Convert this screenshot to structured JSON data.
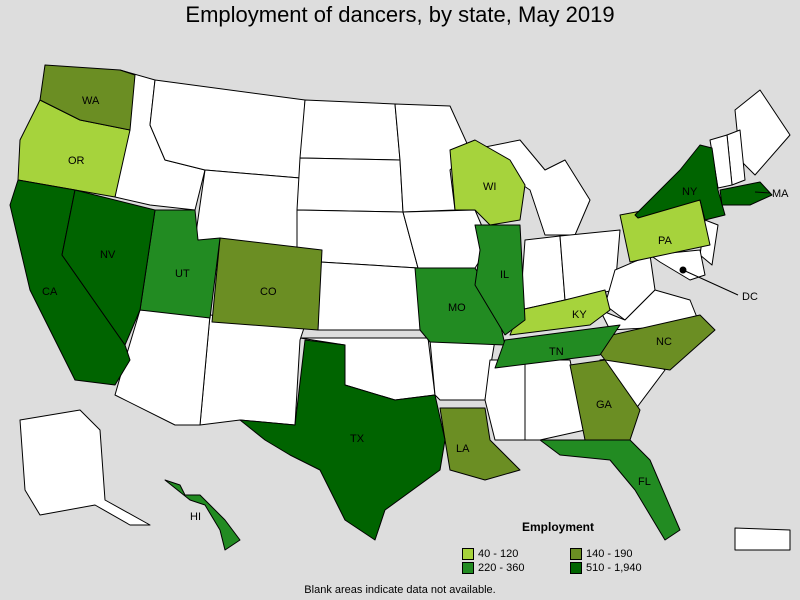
{
  "title": "Employment of dancers, by state, May 2019",
  "legend": {
    "title": "Employment",
    "items": [
      {
        "label": "40 - 120",
        "color": "#a6d33c"
      },
      {
        "label": "140 - 190",
        "color": "#6b8e23"
      },
      {
        "label": "220 - 360",
        "color": "#228b22"
      },
      {
        "label": "510 - 1,940",
        "color": "#006400"
      }
    ]
  },
  "footnote": "Blank areas indicate data not available.",
  "states": {
    "WA": "WA",
    "OR": "OR",
    "CA": "CA",
    "NV": "NV",
    "UT": "UT",
    "CO": "CO",
    "TX": "TX",
    "MO": "MO",
    "IL": "IL",
    "WI": "WI",
    "LA": "LA",
    "TN": "TN",
    "KY": "KY",
    "GA": "GA",
    "FL": "FL",
    "NC": "NC",
    "PA": "PA",
    "NY": "NY",
    "MA": "MA",
    "DC": "DC",
    "HI": "HI"
  },
  "colors": {
    "no_data": "#ffffff",
    "c1": "#a6d33c",
    "c2": "#6b8e23",
    "c3": "#228b22",
    "c4": "#006400"
  }
}
